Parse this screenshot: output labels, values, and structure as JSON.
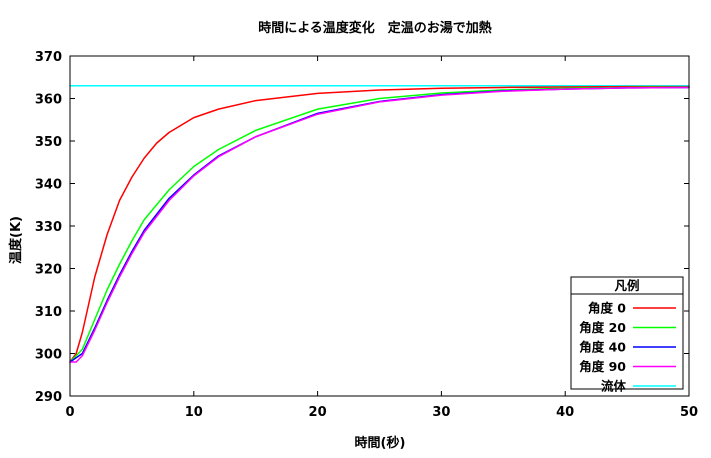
{
  "chart_data": {
    "type": "line",
    "title": "時間による温度変化　定温のお湯で加熱",
    "xlabel": "時間(秒)",
    "ylabel": "温度(K)",
    "xlim": [
      0,
      50
    ],
    "ylim": [
      290,
      370
    ],
    "xticks": [
      0,
      10,
      20,
      30,
      40,
      50
    ],
    "yticks": [
      290,
      300,
      310,
      320,
      330,
      340,
      350,
      360,
      370
    ],
    "grid": false,
    "legend": {
      "title": "凡例",
      "position": "bottom-right"
    },
    "series": [
      {
        "name": "角度 0",
        "color": "#ff0000",
        "x": [
          0,
          0.5,
          1,
          2,
          3,
          4,
          5,
          6,
          7,
          8,
          10,
          12,
          15,
          20,
          25,
          30,
          35,
          40,
          45,
          50
        ],
        "y": [
          298,
          300,
          305,
          318,
          328,
          336,
          341.5,
          346,
          349.5,
          352,
          355.5,
          357.5,
          359.5,
          361.2,
          362,
          362.4,
          362.6,
          362.7,
          362.8,
          362.8
        ]
      },
      {
        "name": "角度 20",
        "color": "#00ff00",
        "x": [
          0,
          1,
          2,
          3,
          4,
          5,
          6,
          8,
          10,
          12,
          15,
          20,
          25,
          30,
          35,
          40,
          45,
          50
        ],
        "y": [
          298,
          301,
          308,
          315,
          321,
          326.5,
          331.5,
          338.5,
          344,
          348,
          352.5,
          357.5,
          360,
          361.3,
          362,
          362.4,
          362.6,
          362.7
        ]
      },
      {
        "name": "角度 40",
        "color": "#0000ff",
        "x": [
          0,
          1,
          2,
          3,
          4,
          5,
          6,
          8,
          10,
          12,
          15,
          20,
          25,
          30,
          35,
          40,
          45,
          50
        ],
        "y": [
          298,
          300,
          306,
          312.5,
          318.5,
          324,
          329,
          336.5,
          342,
          346.5,
          351,
          356.5,
          359.3,
          360.9,
          361.8,
          362.2,
          362.5,
          362.6
        ]
      },
      {
        "name": "角度 90",
        "color": "#ff00ff",
        "x": [
          0,
          0.5,
          1,
          2,
          3,
          4,
          5,
          6,
          8,
          10,
          12,
          15,
          20,
          25,
          30,
          35,
          40,
          45,
          50
        ],
        "y": [
          298,
          298,
          299.5,
          305.5,
          312,
          318,
          323.5,
          328.5,
          336,
          341.8,
          346.3,
          351,
          356.3,
          359.2,
          360.8,
          361.7,
          362.2,
          362.5,
          362.6
        ]
      },
      {
        "name": "流体",
        "color": "#00ffff",
        "x": [
          0,
          50
        ],
        "y": [
          363,
          363
        ]
      }
    ]
  }
}
